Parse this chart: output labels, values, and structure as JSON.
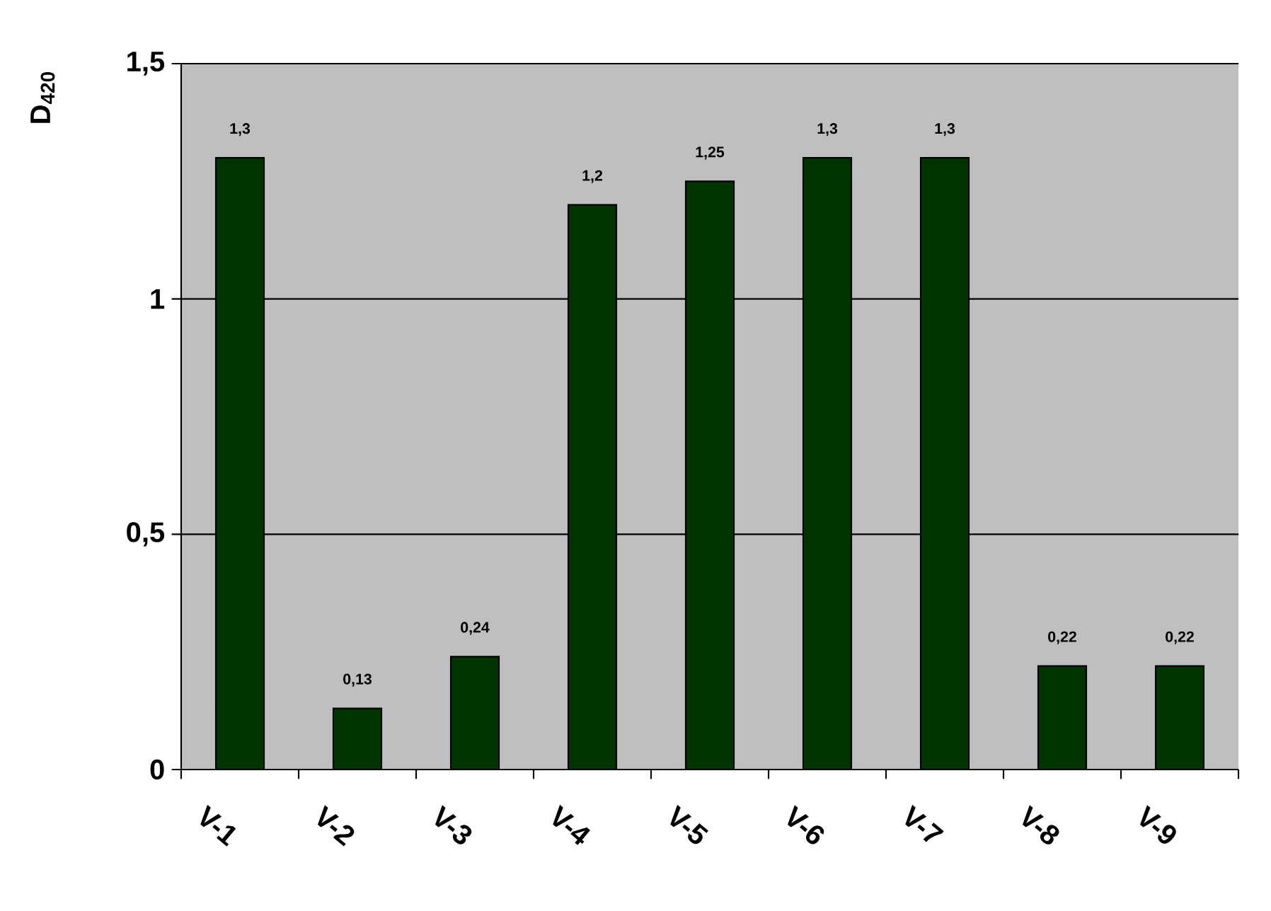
{
  "chart_data": {
    "type": "bar",
    "ylabel": "D$_{420}$",
    "categories": [
      "V-1",
      "V-2",
      "V-3",
      "V-4",
      "V-5",
      "V-6",
      "V-7",
      "V-8",
      "V-9"
    ],
    "values": [
      1.3,
      0.13,
      0.24,
      1.2,
      1.25,
      1.3,
      1.3,
      0.22,
      0.22
    ],
    "value_labels": [
      "1,3",
      "0,13",
      "0,24",
      "1,2",
      "1,25",
      "1,3",
      "1,3",
      "0,22",
      "0,22"
    ],
    "color": "#003300",
    "ylim": [
      0,
      1.5
    ],
    "yticks": [
      0,
      {
        "value": 0.5,
        "label": "0,5"
      },
      1,
      {
        "value": 1.5,
        "label": "1,5"
      }
    ],
    "grid": "y"
  }
}
